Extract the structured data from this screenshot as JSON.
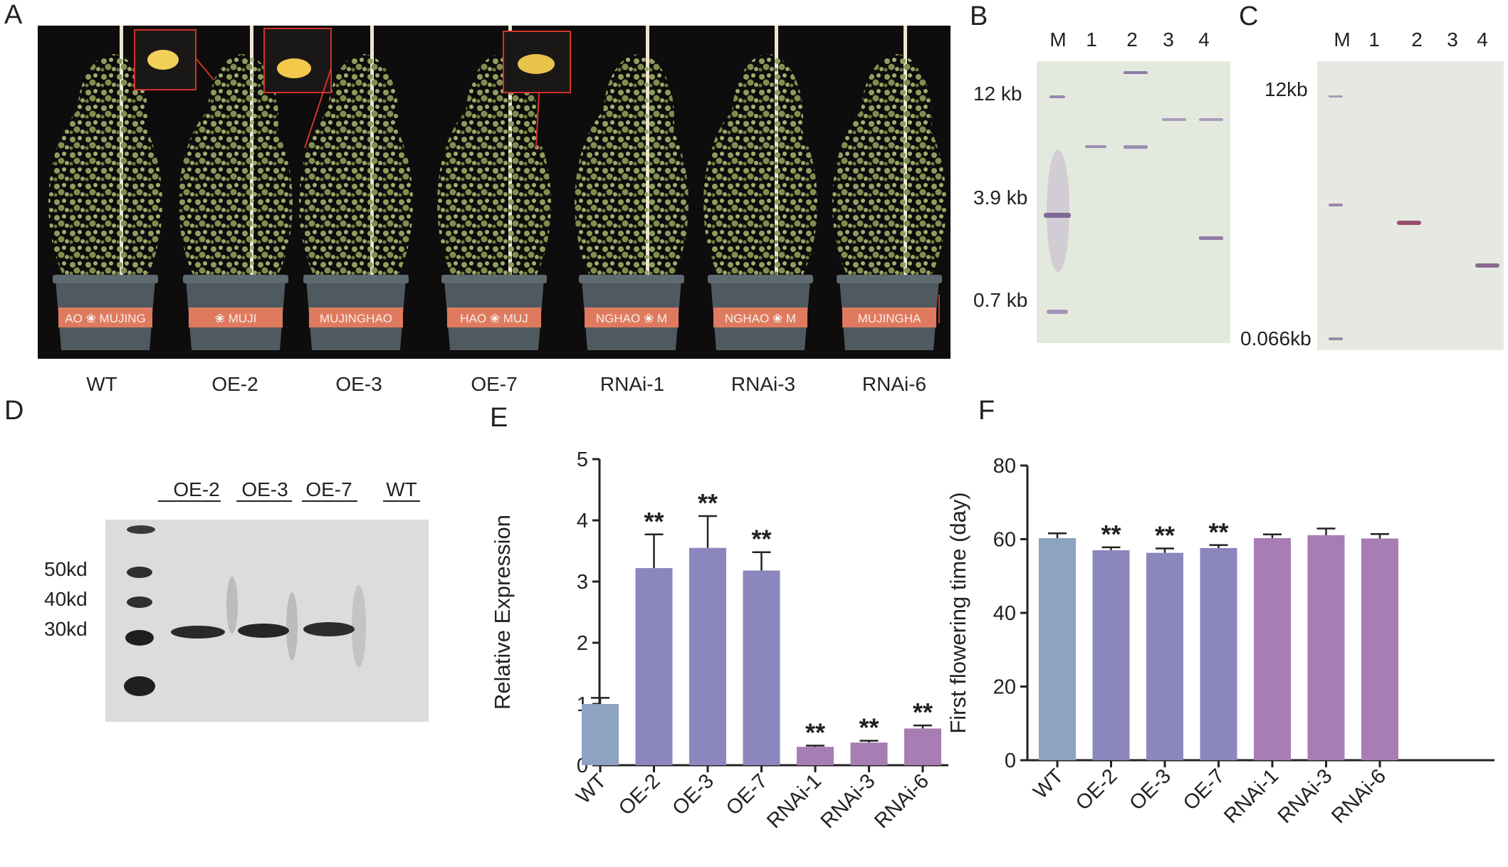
{
  "panel_letters": {
    "A": "A",
    "B": "B",
    "C": "C",
    "D": "D",
    "E": "E",
    "F": "F"
  },
  "panel_a": {
    "plants": [
      "WT",
      "OE-2",
      "OE-3",
      "OE-7",
      "RNAi-1",
      "RNAi-3",
      "RNAi-6"
    ],
    "pot_texts": [
      "AO ❀ MUJING",
      "❀ MUJI",
      "MUJINGHAO",
      "HAO ❀ MUJ",
      "NGHAO ❀ M",
      "NGHAO ❀ M",
      "MUJINGHA"
    ]
  },
  "panel_b": {
    "lanes": [
      "M",
      "1",
      "2",
      "3",
      "4"
    ],
    "markers": [
      "12 kb",
      "3.9 kb",
      "0.7 kb"
    ]
  },
  "panel_c": {
    "lanes": [
      "M",
      "1",
      "2",
      "3",
      "4"
    ],
    "markers": [
      "12kb",
      "0.066kb"
    ]
  },
  "panel_d": {
    "lanes": [
      "OE-2",
      "OE-3",
      "OE-7",
      "WT"
    ],
    "markers": [
      "50kd",
      "40kd",
      "30kd"
    ]
  },
  "colors": {
    "wt": "#8ea2c2",
    "oe": "#8b86bd",
    "rnai": "#a77db3"
  },
  "chart_data": [
    {
      "type": "bar",
      "panel": "E",
      "categories": [
        "WT",
        "OE-2",
        "OE-3",
        "OE-7",
        "RNAi-1",
        "RNAi-3",
        "RNAi-6"
      ],
      "values": [
        1.0,
        3.22,
        3.55,
        3.18,
        0.3,
        0.37,
        0.6
      ],
      "errors": [
        0.1,
        0.55,
        0.52,
        0.3,
        0.02,
        0.03,
        0.05
      ],
      "significance": [
        "",
        "**",
        "**",
        "**",
        "**",
        "**",
        "**"
      ],
      "ylabel": "Relative Expression",
      "ylim": [
        0,
        5
      ],
      "yticks": [
        "0",
        "1",
        "2",
        "3",
        "4",
        "5"
      ]
    },
    {
      "type": "bar",
      "panel": "F",
      "categories": [
        "WT",
        "OE-2",
        "OE-3",
        "OE-7",
        "RNAi-1",
        "RNAi-3",
        "RNAi-6"
      ],
      "values": [
        60.3,
        57.0,
        56.3,
        57.6,
        60.3,
        61.1,
        60.2
      ],
      "errors": [
        1.3,
        0.8,
        1.2,
        0.8,
        1.0,
        1.8,
        1.2
      ],
      "significance": [
        "",
        "**",
        "**",
        "**",
        "",
        "",
        ""
      ],
      "ylabel": "First flowering time (day)",
      "ylim": [
        0,
        80
      ],
      "yticks": [
        "0",
        "20",
        "40",
        "60",
        "80"
      ]
    }
  ]
}
